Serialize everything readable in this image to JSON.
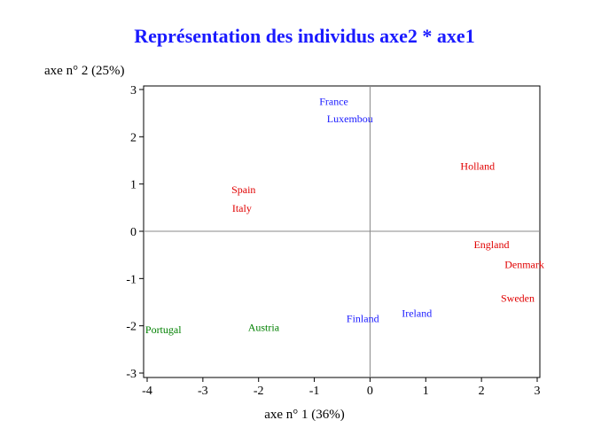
{
  "chart_data": {
    "type": "scatter",
    "title": "Représentation des individus axe2 * axe1",
    "xlabel": "axe n° 1 (36%)",
    "ylabel": "axe n° 2 (25%)",
    "xlim": [
      -4,
      3
    ],
    "ylim": [
      -3,
      3
    ],
    "xticks": [
      -4,
      -3,
      -2,
      -1,
      0,
      1,
      2,
      3
    ],
    "yticks": [
      -3,
      -2,
      -1,
      0,
      1,
      2,
      3
    ],
    "grid": false,
    "reference_lines": [
      0,
      0
    ],
    "points": [
      {
        "label": "France",
        "x": -0.65,
        "y": 2.75,
        "color": "#1a1aff"
      },
      {
        "label": "Luxembou",
        "x": -0.36,
        "y": 2.38,
        "color": "#1a1aff"
      },
      {
        "label": "Holland",
        "x": 1.93,
        "y": 1.38,
        "color": "#e00000"
      },
      {
        "label": "Spain",
        "x": -2.27,
        "y": 0.88,
        "color": "#e00000"
      },
      {
        "label": "Italy",
        "x": -2.3,
        "y": 0.49,
        "color": "#e00000"
      },
      {
        "label": "England",
        "x": 2.18,
        "y": -0.28,
        "color": "#e00000"
      },
      {
        "label": "Denmark",
        "x": 2.77,
        "y": -0.7,
        "color": "#e00000"
      },
      {
        "label": "Sweden",
        "x": 2.65,
        "y": -1.42,
        "color": "#e00000"
      },
      {
        "label": "Ireland",
        "x": 0.84,
        "y": -1.73,
        "color": "#1a1aff"
      },
      {
        "label": "Finland",
        "x": -0.13,
        "y": -1.85,
        "color": "#1a1aff"
      },
      {
        "label": "Austria",
        "x": -1.91,
        "y": -2.03,
        "color": "#008000"
      },
      {
        "label": "Portugal",
        "x": -3.71,
        "y": -2.08,
        "color": "#008000"
      }
    ]
  }
}
